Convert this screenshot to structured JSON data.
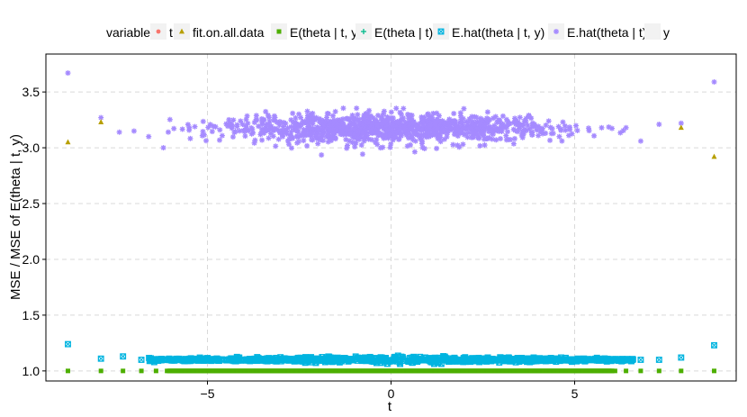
{
  "chart_data": {
    "type": "scatter",
    "xlabel": "t",
    "ylabel": "MSE / MSE of E(theta | t, y)",
    "xlim": [
      -9.4,
      9.4
    ],
    "ylim": [
      0.91,
      3.84
    ],
    "x_ticks": [
      -5,
      0,
      5
    ],
    "x_tick_labels": [
      "−5",
      "0",
      "5"
    ],
    "y_ticks": [
      1.0,
      1.5,
      2.0,
      2.5,
      3.0,
      3.5
    ],
    "y_tick_labels": [
      "1.0",
      "1.5",
      "2.0",
      "2.5",
      "3.0",
      "3.5"
    ],
    "grid": true,
    "legend": {
      "title": "variable",
      "position": "top",
      "entries": [
        {
          "name": "t",
          "color": "#F8766D",
          "shape": "circle"
        },
        {
          "name": "fit.on.all.data",
          "color": "#B79F00",
          "shape": "triangle"
        },
        {
          "name": "E(theta | t, y)",
          "color": "#4DAF00",
          "shape": "square"
        },
        {
          "name": "E(theta | t)",
          "color": "#00BA8B",
          "shape": "plus"
        },
        {
          "name": "E.hat(theta | t, y)",
          "color": "#00B4E0",
          "shape": "boxx"
        },
        {
          "name": "E.hat(theta | t)",
          "color": "#A58AFF",
          "shape": "asterisk"
        },
        {
          "name": "y",
          "color": "#E7E7E7",
          "shape": "none"
        }
      ]
    },
    "series": [
      {
        "name": "fit.on.all.data",
        "x": [
          -8.8,
          -7.9,
          7.9,
          8.8
        ],
        "y": [
          3.05,
          3.23,
          3.18,
          2.92
        ]
      },
      {
        "name": "E(theta | t, y)",
        "description": "all points at 1.0 across t from -8.8 to 8.8",
        "x_range": [
          -8.8,
          8.8
        ],
        "y_value": 1.0,
        "sparse_x": [
          -8.8,
          -7.9,
          -7.3,
          -6.8,
          -6.4,
          -6.1,
          6.1,
          6.4,
          6.8,
          7.3,
          7.9,
          8.8
        ]
      },
      {
        "name": "E.hat(theta | t, y)",
        "description": "band near 1.1, edge values",
        "x_range": [
          -8.8,
          8.8
        ],
        "center": 1.1,
        "spread": 0.015,
        "edge_points": [
          {
            "x": -8.8,
            "y": 1.24
          },
          {
            "x": -7.9,
            "y": 1.11
          },
          {
            "x": -7.3,
            "y": 1.13
          },
          {
            "x": -6.8,
            "y": 1.1
          },
          {
            "x": 6.8,
            "y": 1.1
          },
          {
            "x": 7.3,
            "y": 1.1
          },
          {
            "x": 7.9,
            "y": 1.12
          },
          {
            "x": 8.8,
            "y": 1.23
          }
        ]
      },
      {
        "name": "E.hat(theta | t)",
        "description": "cloud near 3.17, spread wider near center",
        "x_range": [
          -8.8,
          8.8
        ],
        "center": 3.17,
        "spread": 0.07,
        "edge_points": [
          {
            "x": -8.8,
            "y": 3.67
          },
          {
            "x": -7.9,
            "y": 3.27
          },
          {
            "x": -7.4,
            "y": 3.14
          },
          {
            "x": -7.0,
            "y": 3.15
          },
          {
            "x": -6.6,
            "y": 3.1
          },
          {
            "x": -6.2,
            "y": 3.0
          },
          {
            "x": 6.4,
            "y": 3.18
          },
          {
            "x": 6.8,
            "y": 3.06
          },
          {
            "x": 7.3,
            "y": 3.21
          },
          {
            "x": 7.9,
            "y": 3.22
          },
          {
            "x": 8.8,
            "y": 3.59
          }
        ]
      }
    ]
  }
}
